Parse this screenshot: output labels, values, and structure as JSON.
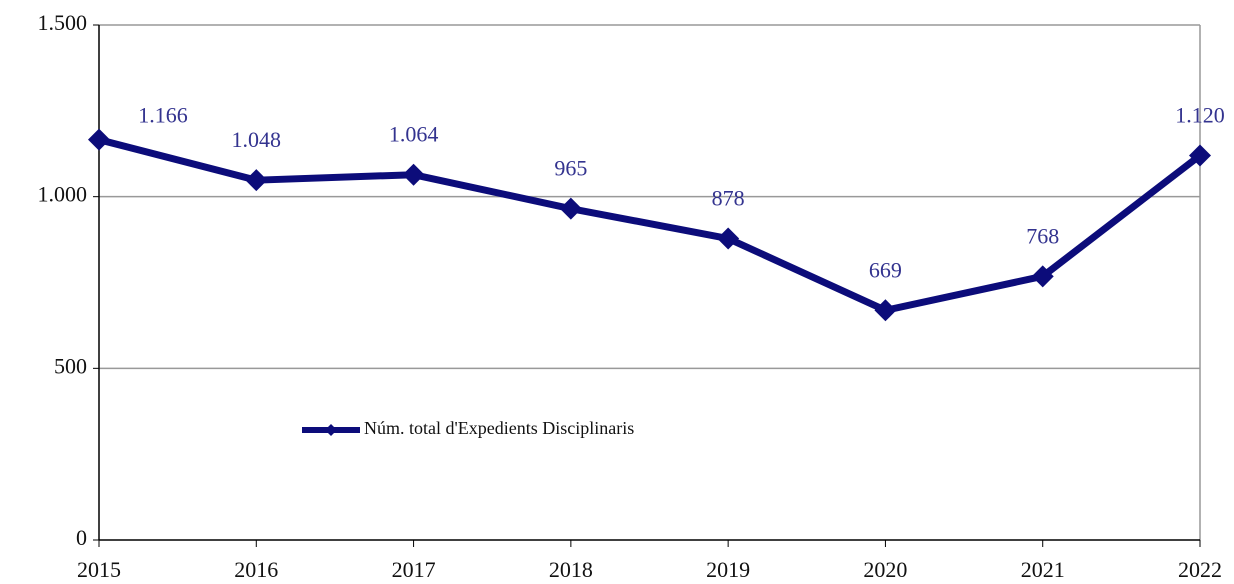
{
  "chart_data": {
    "type": "line",
    "categories": [
      "2015",
      "2016",
      "2017",
      "2018",
      "2019",
      "2020",
      "2021",
      "2022"
    ],
    "series": [
      {
        "name": "Núm. total d'Expedients Disciplinaris",
        "color": "#0c0c7a",
        "values": [
          1166,
          1048,
          1064,
          965,
          878,
          669,
          768,
          1120
        ],
        "value_labels": [
          "1.166",
          "1.048",
          "1.064",
          "965",
          "878",
          "669",
          "768",
          "1.120"
        ]
      }
    ],
    "ylim": [
      0,
      1500
    ],
    "yticks": [
      0,
      500,
      {
        "value": 1000,
        "label": "1.000"
      },
      {
        "value": 1500,
        "label": "1.500"
      }
    ],
    "grid": true
  }
}
